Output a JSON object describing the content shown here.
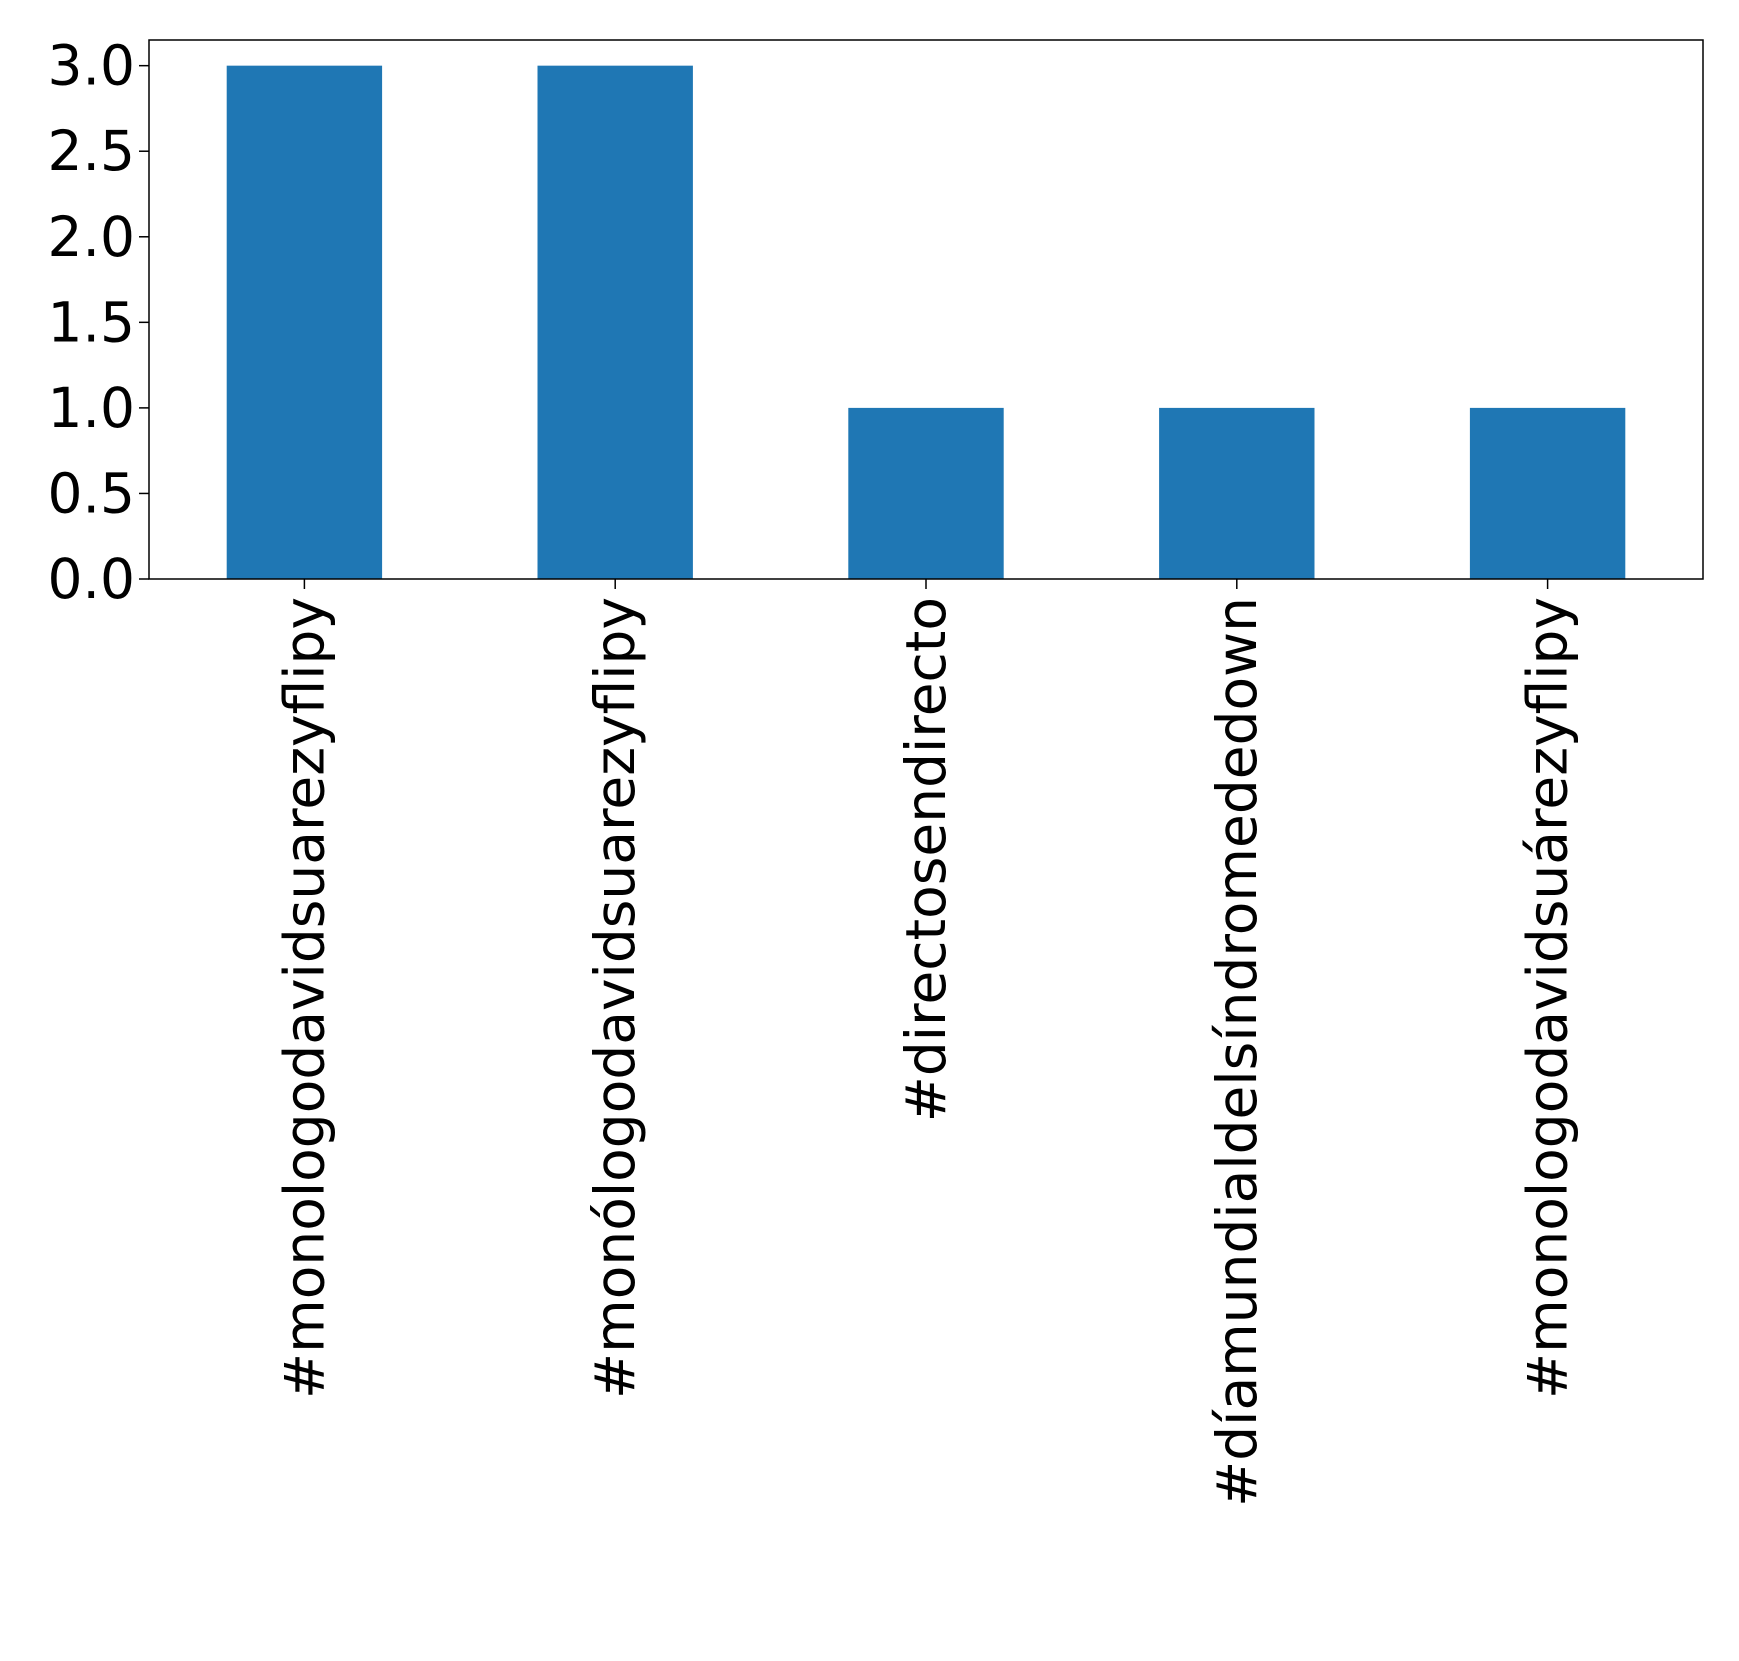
{
  "chart_data": {
    "type": "bar",
    "title": "",
    "xlabel": "",
    "ylabel": "",
    "categories": [
      "#monologodavidsuarezyflipy",
      "#monólogodavidsuarezyflipy",
      "#directosendirecto",
      "#díamundialdelsíndromededown",
      "#monologodavidsuárezyflipy"
    ],
    "values": [
      3,
      3,
      1,
      1,
      1
    ],
    "ylim": [
      0,
      3.15
    ],
    "yticks": [
      "0.0",
      "0.5",
      "1.0",
      "1.5",
      "2.0",
      "2.5",
      "3.0"
    ],
    "bar_color": "#1f77b4",
    "grid": false,
    "legend": "none"
  }
}
